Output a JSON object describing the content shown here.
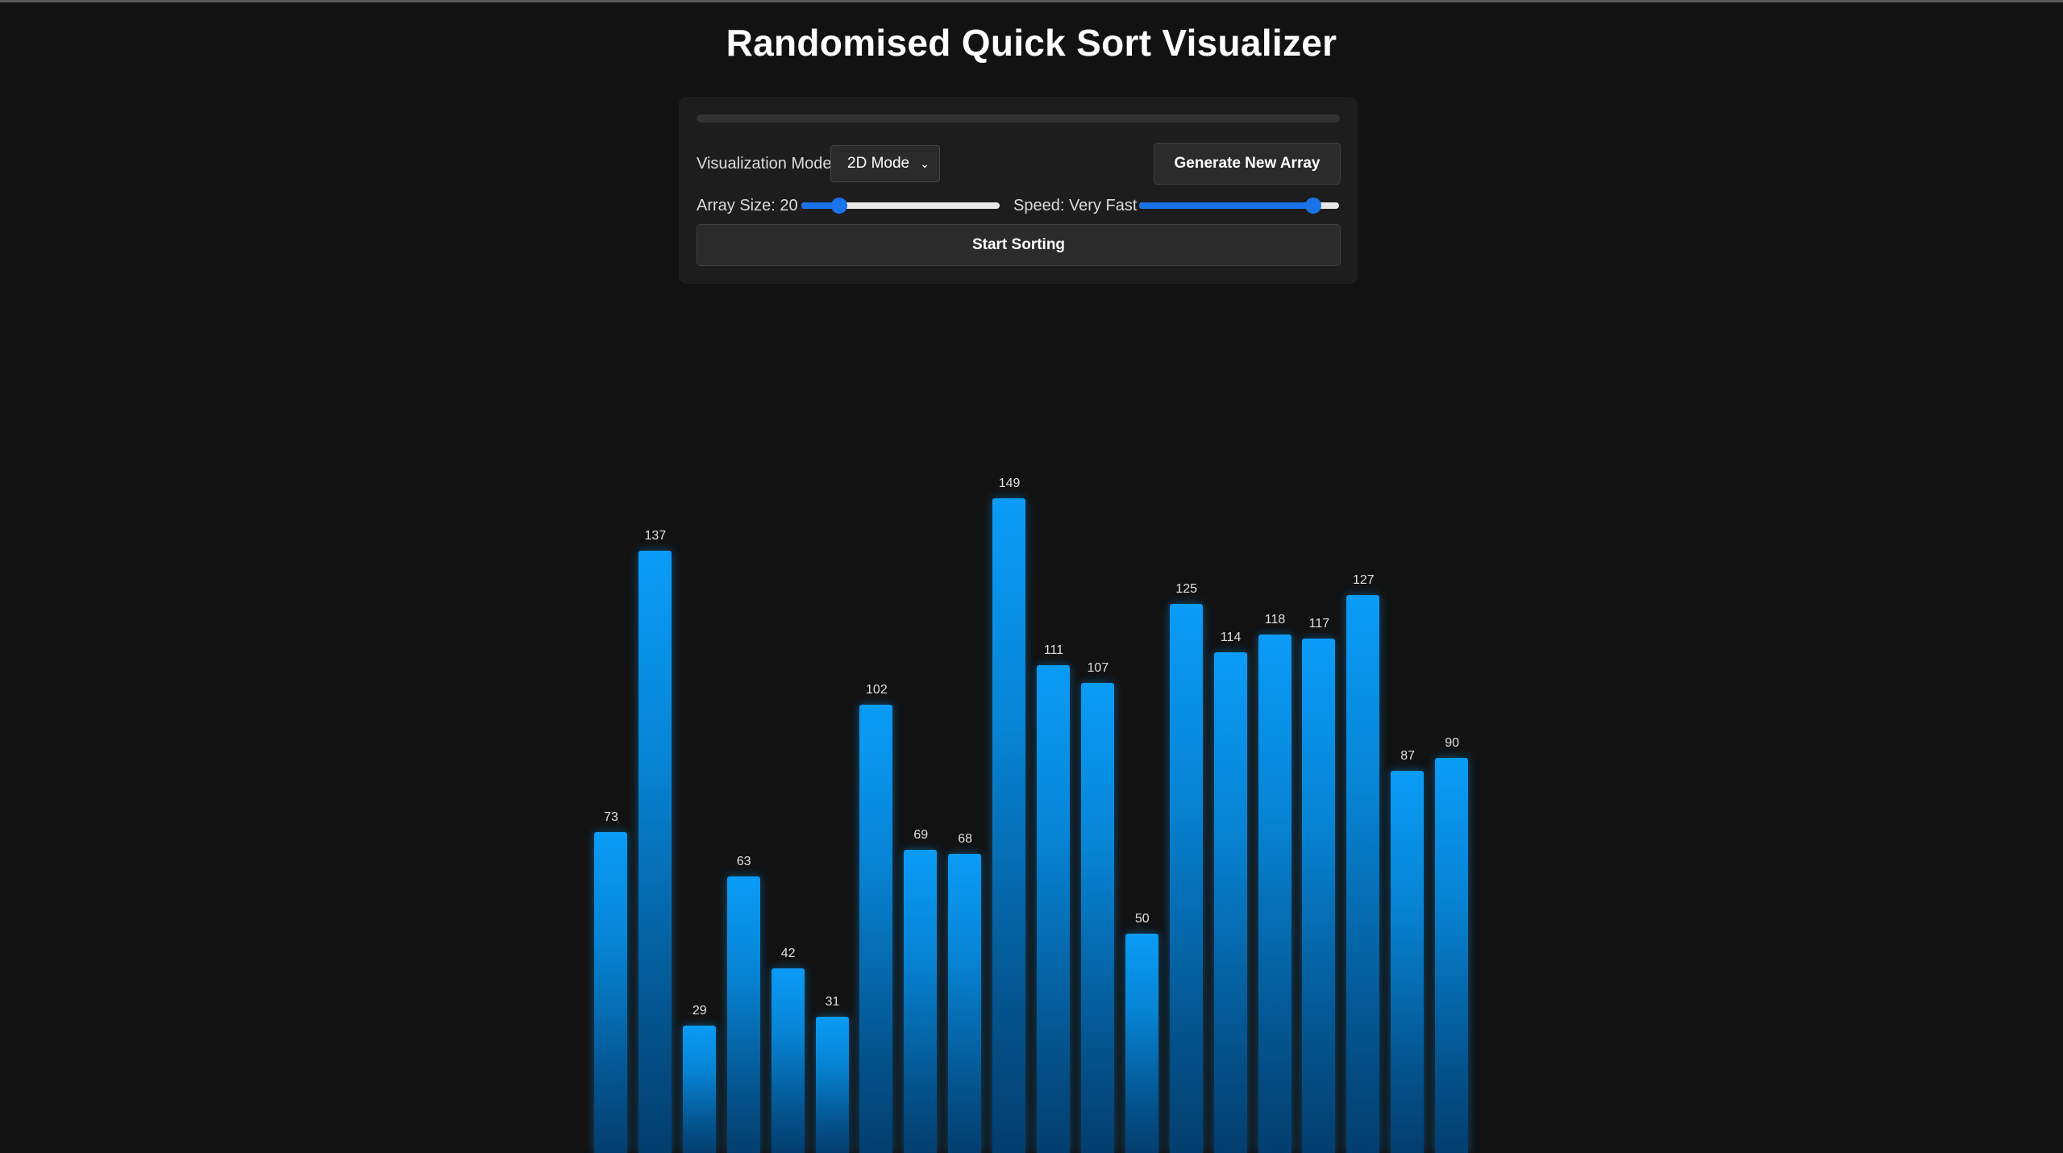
{
  "title": "Randomised Quick Sort Visualizer",
  "controls": {
    "progress_percent": 0,
    "mode_label": "Visualization Mode",
    "mode_value": "2D Mode",
    "generate_label": "Generate New Array",
    "size_label": "Array Size: 20",
    "size_value": 20,
    "size_fraction": 0.19,
    "speed_label": "Speed: Very Fast",
    "speed_fraction": 0.87,
    "start_label": "Start Sorting"
  },
  "colors": {
    "background": "#121212",
    "panel": "#1d1d1d",
    "bar_top": "#0a9cf7",
    "bar_bottom": "#033e6e",
    "accent": "#1a73e8"
  },
  "chart_data": {
    "type": "bar",
    "values": [
      73,
      137,
      29,
      63,
      42,
      31,
      102,
      69,
      68,
      149,
      111,
      107,
      50,
      125,
      114,
      118,
      117,
      127,
      87,
      90
    ]
  }
}
